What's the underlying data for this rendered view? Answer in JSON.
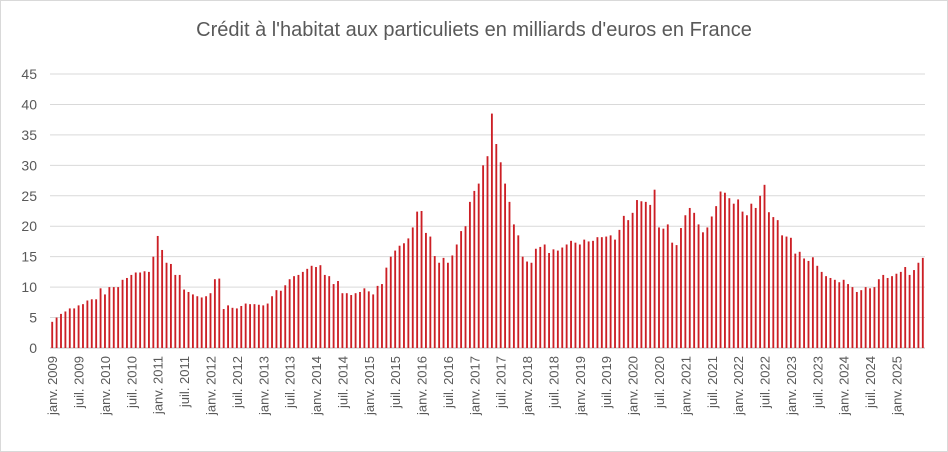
{
  "chart_data": {
    "type": "bar",
    "title": "Crédit à l'habitat aux particuliets en milliards d'euros en France",
    "xlabel": "",
    "ylabel": "",
    "ylim": [
      0,
      45
    ],
    "yticks": [
      0,
      5,
      10,
      15,
      20,
      25,
      30,
      35,
      40,
      45
    ],
    "grid": "horizontal",
    "legend": "none",
    "colors": {
      "bar": "#cc1f25",
      "grid": "#d9d9d9",
      "text": "#595959"
    },
    "x_tick_labels": [
      "janv. 2009",
      "juil. 2009",
      "janv. 2010",
      "juil. 2010",
      "janv. 2011",
      "juil. 2011",
      "janv. 2012",
      "juil. 2012",
      "janv. 2013",
      "juil. 2013",
      "janv. 2014",
      "juil. 2014",
      "janv. 2015",
      "juil. 2015",
      "janv. 2016",
      "juil. 2016",
      "janv. 2017",
      "juil. 2017",
      "janv. 2018",
      "juil. 2018",
      "janv. 2019",
      "juil. 2019",
      "janv. 2020",
      "juil. 2020",
      "janv. 2021",
      "juil. 2021",
      "janv. 2022",
      "juil. 2022",
      "janv. 2023",
      "juil. 2023",
      "janv. 2024",
      "juil. 2024",
      "janv. 2025"
    ],
    "x_start": "janv. 2009",
    "x_end": "juin 2025",
    "values": [
      4.3,
      5.0,
      5.6,
      6.0,
      6.5,
      6.5,
      7.0,
      7.2,
      7.8,
      8.0,
      8.0,
      9.8,
      8.8,
      10.0,
      10.0,
      10.0,
      11.2,
      11.5,
      12.0,
      12.4,
      12.4,
      12.6,
      12.5,
      15.0,
      18.4,
      16.1,
      14.0,
      13.8,
      12.0,
      12.0,
      9.6,
      9.2,
      8.8,
      8.5,
      8.3,
      8.5,
      9.0,
      11.3,
      11.4,
      6.4,
      7.0,
      6.6,
      6.5,
      6.9,
      7.3,
      7.2,
      7.2,
      7.1,
      7.0,
      7.3,
      8.5,
      9.5,
      9.4,
      10.3,
      11.3,
      11.8,
      12.0,
      12.5,
      13.0,
      13.5,
      13.3,
      13.6,
      12.0,
      11.8,
      10.5,
      11.0,
      9.0,
      9.0,
      8.7,
      9.0,
      9.2,
      9.8,
      9.3,
      8.8,
      10.2,
      10.5,
      13.2,
      15.0,
      16.0,
      16.8,
      17.2,
      18.0,
      19.8,
      22.4,
      22.5,
      18.9,
      18.3,
      15.1,
      14.0,
      14.8,
      14.0,
      15.2,
      17.0,
      19.2,
      20.0,
      24.0,
      25.8,
      27.0,
      30.0,
      31.5,
      38.5,
      33.5,
      30.5,
      27.0,
      24.0,
      20.3,
      18.5,
      15.0,
      14.2,
      14.0,
      16.3,
      16.6,
      17.0,
      15.6,
      16.2,
      16.0,
      16.5,
      17.0,
      17.6,
      17.3,
      17.0,
      17.8,
      17.5,
      17.6,
      18.2,
      18.2,
      18.3,
      18.5,
      17.8,
      19.4,
      21.7,
      21.0,
      22.2,
      24.3,
      24.1,
      24.0,
      23.5,
      26.0,
      19.8,
      19.6,
      20.3,
      17.3,
      16.9,
      19.7,
      21.8,
      23.0,
      22.2,
      20.3,
      19.0,
      19.8,
      21.6,
      23.3,
      25.7,
      25.5,
      24.6,
      23.7,
      24.4,
      22.4,
      21.8,
      23.7,
      23.0,
      25.0,
      26.8,
      22.3,
      21.5,
      21.0,
      18.5,
      18.3,
      18.1,
      15.5,
      15.8,
      14.7,
      14.3,
      14.9,
      13.5,
      12.5,
      11.8,
      11.5,
      11.2,
      10.8,
      11.2,
      10.5,
      10.0,
      9.2,
      9.5,
      10.0,
      9.8,
      10.0,
      11.3,
      12.0,
      11.5,
      11.8,
      12.2,
      12.5,
      13.3,
      12.0,
      12.8,
      14.0,
      14.8
    ]
  }
}
